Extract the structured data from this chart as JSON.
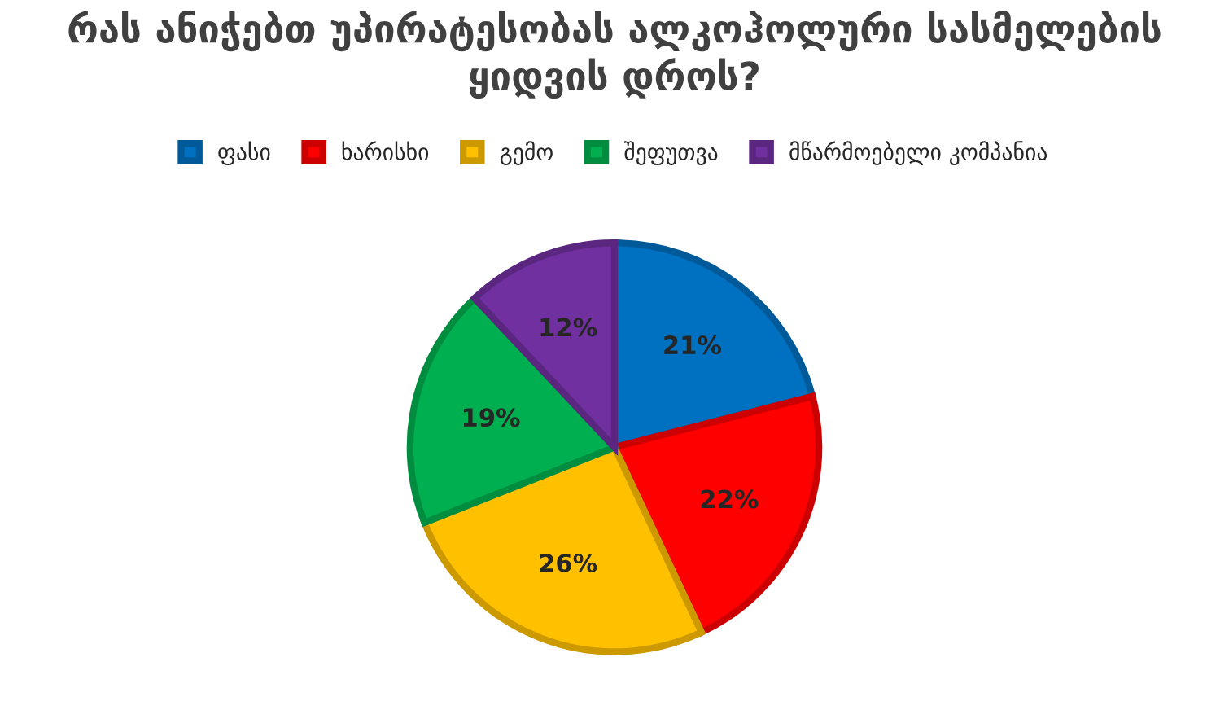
{
  "chart_data": {
    "type": "pie",
    "title": "რას ანიჭებთ უპირატესობას ალკოჰოლური სასმელების ყიდვის დროს?",
    "categories": [
      "ფასი",
      "ხარისხი",
      "გემო",
      "შეფუთვა",
      "მწარმოებელი კომპანია"
    ],
    "values": [
      21,
      22,
      26,
      19,
      12
    ],
    "value_labels": [
      "21%",
      "22%",
      "26%",
      "19%",
      "12%"
    ],
    "colors": [
      "#0070c0",
      "#ff0000",
      "#ffc000",
      "#00b050",
      "#7030a0"
    ],
    "legend": "top"
  }
}
